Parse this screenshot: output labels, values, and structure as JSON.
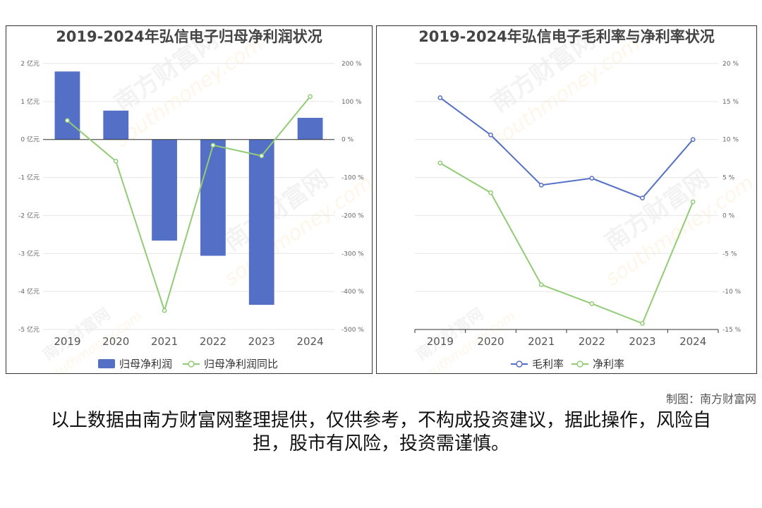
{
  "chart_data": [
    {
      "type": "bar",
      "title": "2019-2024年弘信电子归母净利润状况",
      "categories": [
        "2019",
        "2020",
        "2021",
        "2022",
        "2023",
        "2024"
      ],
      "y_left": {
        "range": [
          -5,
          2
        ],
        "ticks": [
          2,
          1,
          0,
          -1,
          -2,
          -3,
          -4,
          -5
        ],
        "tick_labels": [
          "2 亿元",
          "1 亿元",
          "0 亿元",
          "-1 亿元",
          "-2 亿元",
          "-3 亿元",
          "-4 亿元",
          "-5 亿元"
        ]
      },
      "y_right": {
        "range": [
          -500,
          200
        ],
        "ticks": [
          200,
          100,
          0,
          -100,
          -200,
          -300,
          -400,
          -500
        ],
        "tick_labels": [
          "200 %",
          "100 %",
          "0 %",
          "-100 %",
          "-200 %",
          "-300 %",
          "-400 %",
          "-500 %"
        ]
      },
      "series": [
        {
          "name": "归母净利润",
          "kind": "bar",
          "axis": "left",
          "color": "#5470c6",
          "values": [
            1.79,
            0.76,
            -2.66,
            -3.06,
            -4.35,
            0.57
          ]
        },
        {
          "name": "归母净利润同比",
          "kind": "line",
          "axis": "right",
          "color": "#91cc75",
          "values": [
            50,
            -57,
            -450,
            -15,
            -43,
            113
          ]
        }
      ],
      "legend_position": "bottom-center",
      "grid": true
    },
    {
      "type": "line",
      "title": "2019-2024年弘信电子毛利率与净利率状况",
      "categories": [
        "2019",
        "2020",
        "2021",
        "2022",
        "2023",
        "2024"
      ],
      "y_right": {
        "range": [
          -15,
          20
        ],
        "ticks": [
          20,
          15,
          10,
          5,
          0,
          -5,
          -10,
          -15
        ],
        "tick_labels": [
          "20 %",
          "15 %",
          "10 %",
          "5 %",
          "0 %",
          "-5 %",
          "-10 %",
          "-15 %"
        ]
      },
      "series": [
        {
          "name": "毛利率",
          "color": "#5470c6",
          "values": [
            15.5,
            10.6,
            4.0,
            4.9,
            2.3,
            10.0
          ]
        },
        {
          "name": "净利率",
          "color": "#91cc75",
          "values": [
            6.9,
            3.0,
            -9.1,
            -11.6,
            -14.2,
            1.8
          ]
        }
      ],
      "legend_position": "bottom-center",
      "grid": true
    }
  ],
  "watermark": {
    "brand": "南方财富网",
    "domain": "southmoney.com"
  },
  "footer": {
    "credit": "制图：南方财富网",
    "disclaimer": "以上数据由南方财富网整理提供，仅供参考，不构成投资建议，据此操作，风险自担，股市有风险，投资需谨慎。"
  }
}
